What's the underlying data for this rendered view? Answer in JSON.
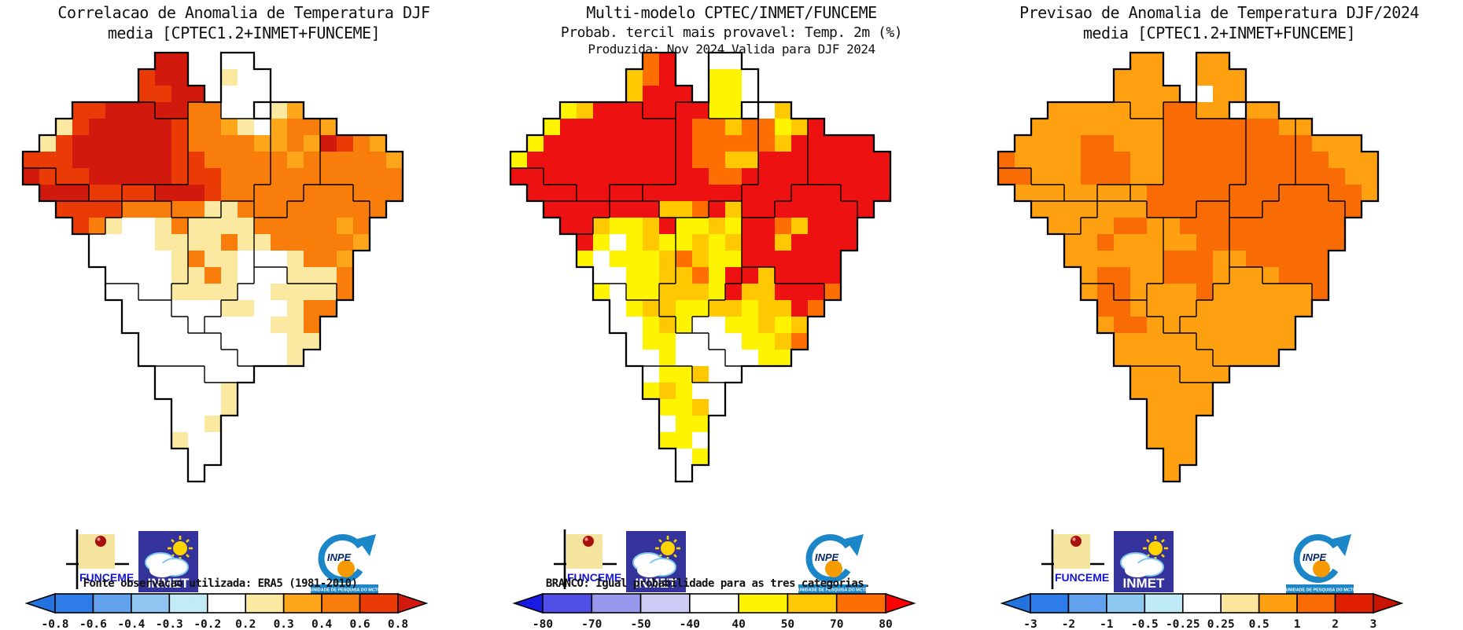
{
  "logos": {
    "funceme_label": "FUNCEME",
    "inmet_label": "INMET",
    "inpe_label": "INPE",
    "inpe_banner": "UNIDADE DE PESQUISA DO MCTI"
  },
  "palette": {
    "W": "#ffffff",
    "R": "#d2190d",
    "E": "#ea3b07",
    "O": "#f87d0b",
    "A": "#ffa519",
    "P": "#fbe9a2",
    "F": "#ee1111",
    "N": "#ff6e00",
    "G": "#ffc800",
    "Y": "#fff400",
    "Q": "#ffa010",
    "D": "#f96c05"
  },
  "geo": {
    "cols": 24,
    "rows": 26,
    "region_key": {
      "A": "Roraima",
      "B": "Amapa",
      "C": "Amazonas",
      "D": "Acre",
      "E": "Para",
      "F": "Rondonia",
      "G": "Mato Grosso",
      "H": "Maranhao/Piaui",
      "I": "Nordeste litoral",
      "J": "Bahia",
      "K": "Tocantins/Goias",
      "L": "Minas/ES/RJ",
      "M": "SP/Mato Grosso do Sul",
      "N": "Sul"
    },
    "mask_regions": [
      "........AA..BB..........",
      ".......AAA..BBB.........",
      ".......AAAA.BBB.........",
      "...CCCCCAAEEBB.HH.......",
      "..CCCCCCCCEEEEEHHHI.....",
      ".CCCCCCCCCEEEEEHHHIIII..",
      "CCCCCCCCCCEEEEEHHHIIIII.",
      "DDCCCCCCCCEEEEEHHHIIIII.",
      ".DDDCCFFEEEEEEHHHJJJIII.",
      "..FFFFGGGEEEKKHHJJJJJI..",
      "...FFGGGGGKKKKJJJJJJJ...",
      "....GGGGGGKKKKJJJJJJJ...",
      "....GGGGGGKKKKJJJJJJ....",
      ".....GGGGGKKKKLLJJJJ....",
      ".....MMGGKKKKLLLLLLJ....",
      "......MMMKKKLLLLLLL.....",
      "......MMMMKLLLLLLL......",
      ".......MMMMMLLLLLL......",
      ".......MMMMMMLLLL.......",
      "........NNNMMM..........",
      "........NNNNN...........",
      ".........NNNN...........",
      ".........NNN............",
      ".........NNN............",
      "..........NN............",
      "..........N............."
    ]
  },
  "panels": [
    {
      "id": "correlation",
      "title_lines": [
        "Correlacao de Anomalia de Temperatura DJF",
        "media [CPTEC1.2+INMET+FUNCEME]"
      ],
      "footnote": "Fonte observacao utilizada: ERA5 (1981-2010)",
      "colorbar": {
        "tick_labels": [
          "-0.8",
          "-0.6",
          "-0.4",
          "-0.3",
          "-0.2",
          "0.2",
          "0.3",
          "0.4",
          "0.6",
          "0.8"
        ],
        "segment_colors": [
          "#2e7ce8",
          "#62a2ee",
          "#92c6f2",
          "#c2ebf7",
          "#ffffff",
          "#fbe9a2",
          "#ffa519",
          "#f87d0b",
          "#ea3b07"
        ],
        "left_arrow_color": "#2272e0",
        "right_arrow_color": "#d2190d"
      },
      "grid": [
        "........RR..WW..........",
        ".......ERR..PWW.........",
        ".......EERR.WWW.........",
        "...EERRRRROOWW.PA.......",
        "..PERRRRREOOAPWAOOA.....",
        ".PERRRRRREOOOOAAOAREOA..",
        "EEERRRRRREEOOOOOAOOOOOA.",
        "REEERRRRREEEOOOOOOOOOOO.",
        ".RRREEEERRREOOOOOOOOOOO.",
        "..EEEEOOOOOPPOOOOOOOOO..",
        "...EOPWWPOPPPPOOOOOAO...",
        "....WWWWPPPPOPPOOOOOA...",
        "....WWWWWPOPPWWWPOOA....",
        ".....WWWWPPOPWWWPPPO....",
        ".....WWWWPPPPWWPPPPO....",
        "......WWWWWWPPWWPOO.....",
        "......WWWWWWWWWPPO......",
        ".......WWWWWWWWWPP......",
        ".......WWWWWWWWWP.......",
        "........WWWWWW..........",
        "........WWWWP...........",
        ".........WWWP...........",
        ".........WWP............",
        ".........PWW............",
        "..........WW............",
        "..........W............."
      ]
    },
    {
      "id": "probability",
      "title_lines": [
        "Multi-modelo CPTEC/INMET/FUNCEME",
        "Probab. tercil mais provavel: Temp. 2m (%)",
        "Produzida: Nov 2024   Valida para DJF 2024"
      ],
      "footnote": "BRANCO: Igual probabilidade para as tres categorias.",
      "colorbar": {
        "tick_labels": [
          "-80",
          "-70",
          "-50",
          "-40",
          "40",
          "50",
          "70",
          "80"
        ],
        "segment_colors": [
          "#5050e8",
          "#9898ec",
          "#ccccf4",
          "#ffffff",
          "#fff400",
          "#ffc800",
          "#ff6e00"
        ],
        "left_arrow_color": "#1a1ae6",
        "right_arrow_color": "#ff0000"
      },
      "grid": [
        "........NF..WW..........",
        ".......GNF..YYW.........",
        ".......GFFF.YYW.........",
        "...YGFFFFFFFYY.WG.......",
        "..YFFFFFFFFNNGNNYGF.....",
        ".YFFFFFFFFFNNNNNGFFFFF..",
        "YFFFFFFFFFFNNGGFFFFFFFF.",
        "FFFFFFFFFFFFNNFFFFFFFFF.",
        ".FFFFFFFFFFFFFFFFFFFFFF.",
        "..FFFFFFFGGNFGFFFFFFFF..",
        "...FFGYYGFYYGYFFNGFFF...",
        "....FYWYGYYGYGFFGFFFF...",
        "....YWYYYGNGYYFFFFFF....",
        ".....WWYYGGNYFFGFFFF....",
        ".....YWYYGGGYFGGFFFN....",
        "......WYGGYYGGYGGFN.....",
        "......WWYGYWWYYGYG......",
        ".......WYYWWWWYYGN......",
        ".......WWYWWWWWYY.......",
        "........WYYGWW..........",
        "........YGYWW...........",
        ".........YYGW...........",
        ".........WYY............",
        ".........YYW............",
        "..........WY............",
        "..........W............."
      ]
    },
    {
      "id": "forecast",
      "title_lines": [
        "Previsao de Anomalia de Temperatura DJF/2024",
        "media [CPTEC1.2+INMET+FUNCEME]"
      ],
      "footnote": "",
      "colorbar": {
        "tick_labels": [
          "-3",
          "-2",
          "-1",
          "-0.5",
          "-0.25",
          "0.25",
          "0.5",
          "1",
          "2",
          "3"
        ],
        "segment_colors": [
          "#2e7ce8",
          "#62a2ee",
          "#8cc8f0",
          "#beebf5",
          "#ffffff",
          "#fbe49b",
          "#ffa010",
          "#f96c05",
          "#e01f00"
        ],
        "left_arrow_color": "#2272e0",
        "right_arrow_color": "#c81400"
      },
      "grid": [
        "........QQ..QQ..........",
        ".......QQQ..QQQ.........",
        ".......QQQQ.WQQ.........",
        "...QQQQQQQDDQQ.QQ.......",
        "..QQQQQQQQDDDDDDDQQ.....",
        ".QQQQDDQQQDDDDDDDDDQQQ..",
        "DQQQQDDDQQDDDDDDDDDDQQQ.",
        "DDQQQDDDQQDDDDDDDDDDDQQ.",
        ".QQQQQQQQDDDDDDDDDDDDDQ.",
        "..QQQQQQQDDDDDDDDDDDDD..",
        "...QQQQDDQQDDDDDDDDDD...",
        "....QQDQQQQQDDDDDDDDD...",
        "....QQQQQQDDDQQDDDDD....",
        ".....QDDQQDDDQQQQDDD....",
        ".....QDDQQQQDQQQQQQD....",
        "......DDQQQQQQQQQQQ.....",
        "......QDDQQQQQQQQQ......",
        ".......QQQQQQQQQQQ......",
        ".......QQQQQQQQQQ.......",
        "........QQQQQQ..........",
        "........QQQQQ...........",
        ".........QQQQ...........",
        ".........QQQ............",
        ".........QQQ............",
        "..........QQ............",
        "..........Q............."
      ]
    }
  ]
}
